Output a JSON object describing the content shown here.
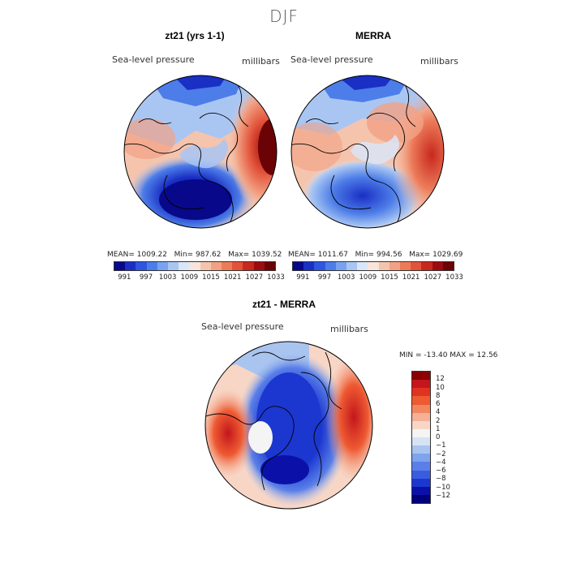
{
  "season": "DJF",
  "panels": [
    {
      "title": "zt21 (yrs 1-1)",
      "variable": "Sea-level pressure",
      "units": "millibars",
      "stats": {
        "mean_label": "MEAN=",
        "mean": "1009.22",
        "min_label": "Min=",
        "min": "987.62",
        "max_label": "Max=",
        "max": "1039.52"
      }
    },
    {
      "title": "MERRA",
      "variable": "Sea-level pressure",
      "units": "millibars",
      "stats": {
        "mean_label": "MEAN=",
        "mean": "1011.67",
        "min_label": "Min=",
        "min": "994.56",
        "max_label": "Max=",
        "max": "1029.69"
      }
    },
    {
      "title": "zt21 - MERRA",
      "variable": "Sea-level pressure",
      "units": "millibars",
      "stats_text": "MIN = -13.40 MAX =  12.56"
    }
  ],
  "colorbars": {
    "abs": {
      "colors": [
        "#08088a",
        "#1a2fc4",
        "#2f56e0",
        "#4d7de8",
        "#7aa3ef",
        "#a9c6f3",
        "#d9e6f7",
        "#f7e5dc",
        "#f5c4ad",
        "#f2a184",
        "#ec7b5a",
        "#e2533a",
        "#c8281d",
        "#9b0c10",
        "#6b0205"
      ],
      "tick_labels": [
        "991",
        "997",
        "1003",
        "1009",
        "1015",
        "1021",
        "1027",
        "1033"
      ]
    },
    "diff": {
      "colors": [
        "#8b0000",
        "#c4161c",
        "#e0331f",
        "#ee5a32",
        "#f2875e",
        "#f5b095",
        "#f8d6c6",
        "#f4f4f4",
        "#d5e3f5",
        "#a9c4ef",
        "#7fa3ec",
        "#5a7fe8",
        "#3a5de0",
        "#1c37d0",
        "#0b11a8",
        "#00007a"
      ],
      "tick_labels": [
        "12",
        "10",
        "8",
        "6",
        "4",
        "2",
        "1",
        "0",
        "−1",
        "−2",
        "−4",
        "−6",
        "−8",
        "−10",
        "−12"
      ]
    }
  },
  "chart_data": [
    {
      "type": "heatmap",
      "title": "zt21 (yrs 1-1)",
      "subtitle": "Sea-level pressure",
      "units": "millibars",
      "projection": "north polar stereographic",
      "mean": 1009.22,
      "min": 987.62,
      "max": 1039.52,
      "levels": [
        991,
        994,
        997,
        1000,
        1003,
        1006,
        1009,
        1012,
        1015,
        1018,
        1021,
        1024,
        1027,
        1030,
        1033
      ]
    },
    {
      "type": "heatmap",
      "title": "MERRA",
      "subtitle": "Sea-level pressure",
      "units": "millibars",
      "projection": "north polar stereographic",
      "mean": 1011.67,
      "min": 994.56,
      "max": 1029.69,
      "levels": [
        991,
        994,
        997,
        1000,
        1003,
        1006,
        1009,
        1012,
        1015,
        1018,
        1021,
        1024,
        1027,
        1030,
        1033
      ]
    },
    {
      "type": "heatmap",
      "title": "zt21 - MERRA",
      "subtitle": "Sea-level pressure",
      "units": "millibars",
      "projection": "north polar stereographic",
      "min": -13.4,
      "max": 12.56,
      "levels": [
        -12,
        -10,
        -8,
        -6,
        -4,
        -2,
        -1,
        0,
        1,
        2,
        4,
        6,
        8,
        10,
        12
      ]
    }
  ]
}
